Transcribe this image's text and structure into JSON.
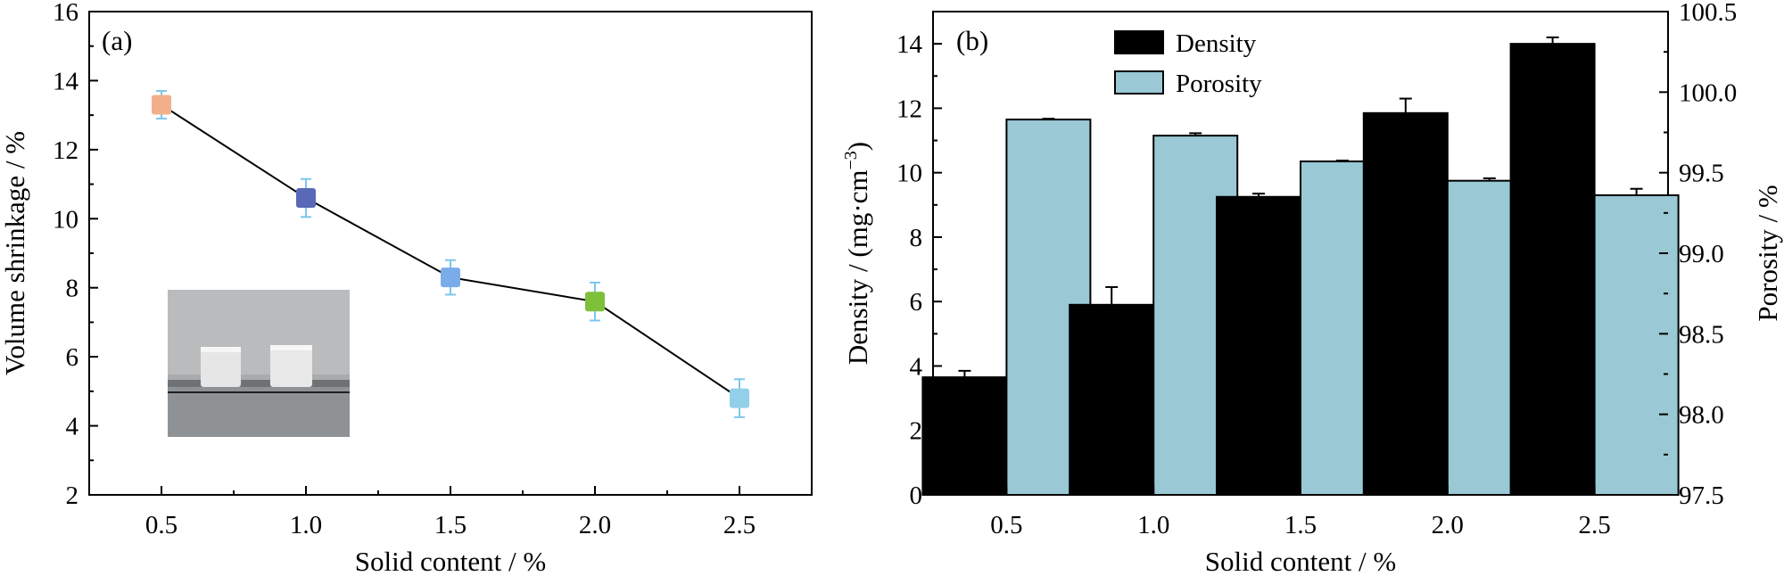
{
  "chart_data": [
    {
      "type": "line",
      "panel_label": "(a)",
      "xlabel": "Solid content / %",
      "ylabel": "Volume shrinkage / %",
      "xlim": [
        0.25,
        2.75
      ],
      "ylim": [
        2,
        16
      ],
      "xticks": [
        "0.5",
        "1.0",
        "1.5",
        "2.0",
        "2.5"
      ],
      "xtick_values": [
        0.5,
        1.0,
        1.5,
        2.0,
        2.5
      ],
      "yticks": [
        "2",
        "4",
        "6",
        "8",
        "10",
        "12",
        "14",
        "16"
      ],
      "ytick_values": [
        2,
        4,
        6,
        8,
        10,
        12,
        14,
        16
      ],
      "series": [
        {
          "x": [
            0.5,
            1.0,
            1.5,
            2.0,
            2.5
          ],
          "values": [
            13.3,
            10.6,
            8.3,
            7.6,
            4.8
          ],
          "errors": [
            0.4,
            0.55,
            0.5,
            0.55,
            0.55
          ],
          "marker_colors": [
            "#f2b08a",
            "#5a68b8",
            "#7aacea",
            "#7ec03a",
            "#92cfe8"
          ],
          "error_bar_color": "#7cc7ec",
          "line_color": "#000000"
        }
      ],
      "inset": {
        "type": "photo",
        "description_icon": "photo-two-white-aerogel-cubes"
      }
    },
    {
      "type": "bar",
      "panel_label": "(b)",
      "xlabel": "Solid content / %",
      "ylabel_left": "Density / (mg·cm",
      "ylabel_left_sup": "−3",
      "ylabel_left_close": ")",
      "ylabel_right": "Porosity / %",
      "categories": [
        "0.5",
        "1.0",
        "1.5",
        "2.0",
        "2.5"
      ],
      "ylim_left": [
        0,
        15
      ],
      "ylim_right": [
        97.5,
        100.5
      ],
      "yticks_left": [
        "0",
        "2",
        "4",
        "6",
        "8",
        "10",
        "12",
        "14"
      ],
      "ytick_values_left": [
        0,
        2,
        4,
        6,
        8,
        10,
        12,
        14
      ],
      "yticks_right": [
        "97.5",
        "98.0",
        "98.5",
        "99.0",
        "99.5",
        "100.0",
        "100.5"
      ],
      "ytick_values_right": [
        97.5,
        98.0,
        98.5,
        99.0,
        99.5,
        100.0,
        100.5
      ],
      "legend_position": "top-center",
      "series": [
        {
          "name": "Density",
          "axis": "left",
          "color": "#000000",
          "values": [
            3.65,
            5.9,
            9.25,
            11.85,
            14.0
          ],
          "errors": [
            0.2,
            0.55,
            0.1,
            0.45,
            0.2
          ]
        },
        {
          "name": "Porosity",
          "axis": "right",
          "color": "#9ac8d5",
          "values": [
            99.83,
            99.73,
            99.57,
            99.45,
            99.36
          ],
          "errors": [
            0.005,
            0.015,
            0.005,
            0.015,
            0.04
          ]
        }
      ]
    }
  ]
}
